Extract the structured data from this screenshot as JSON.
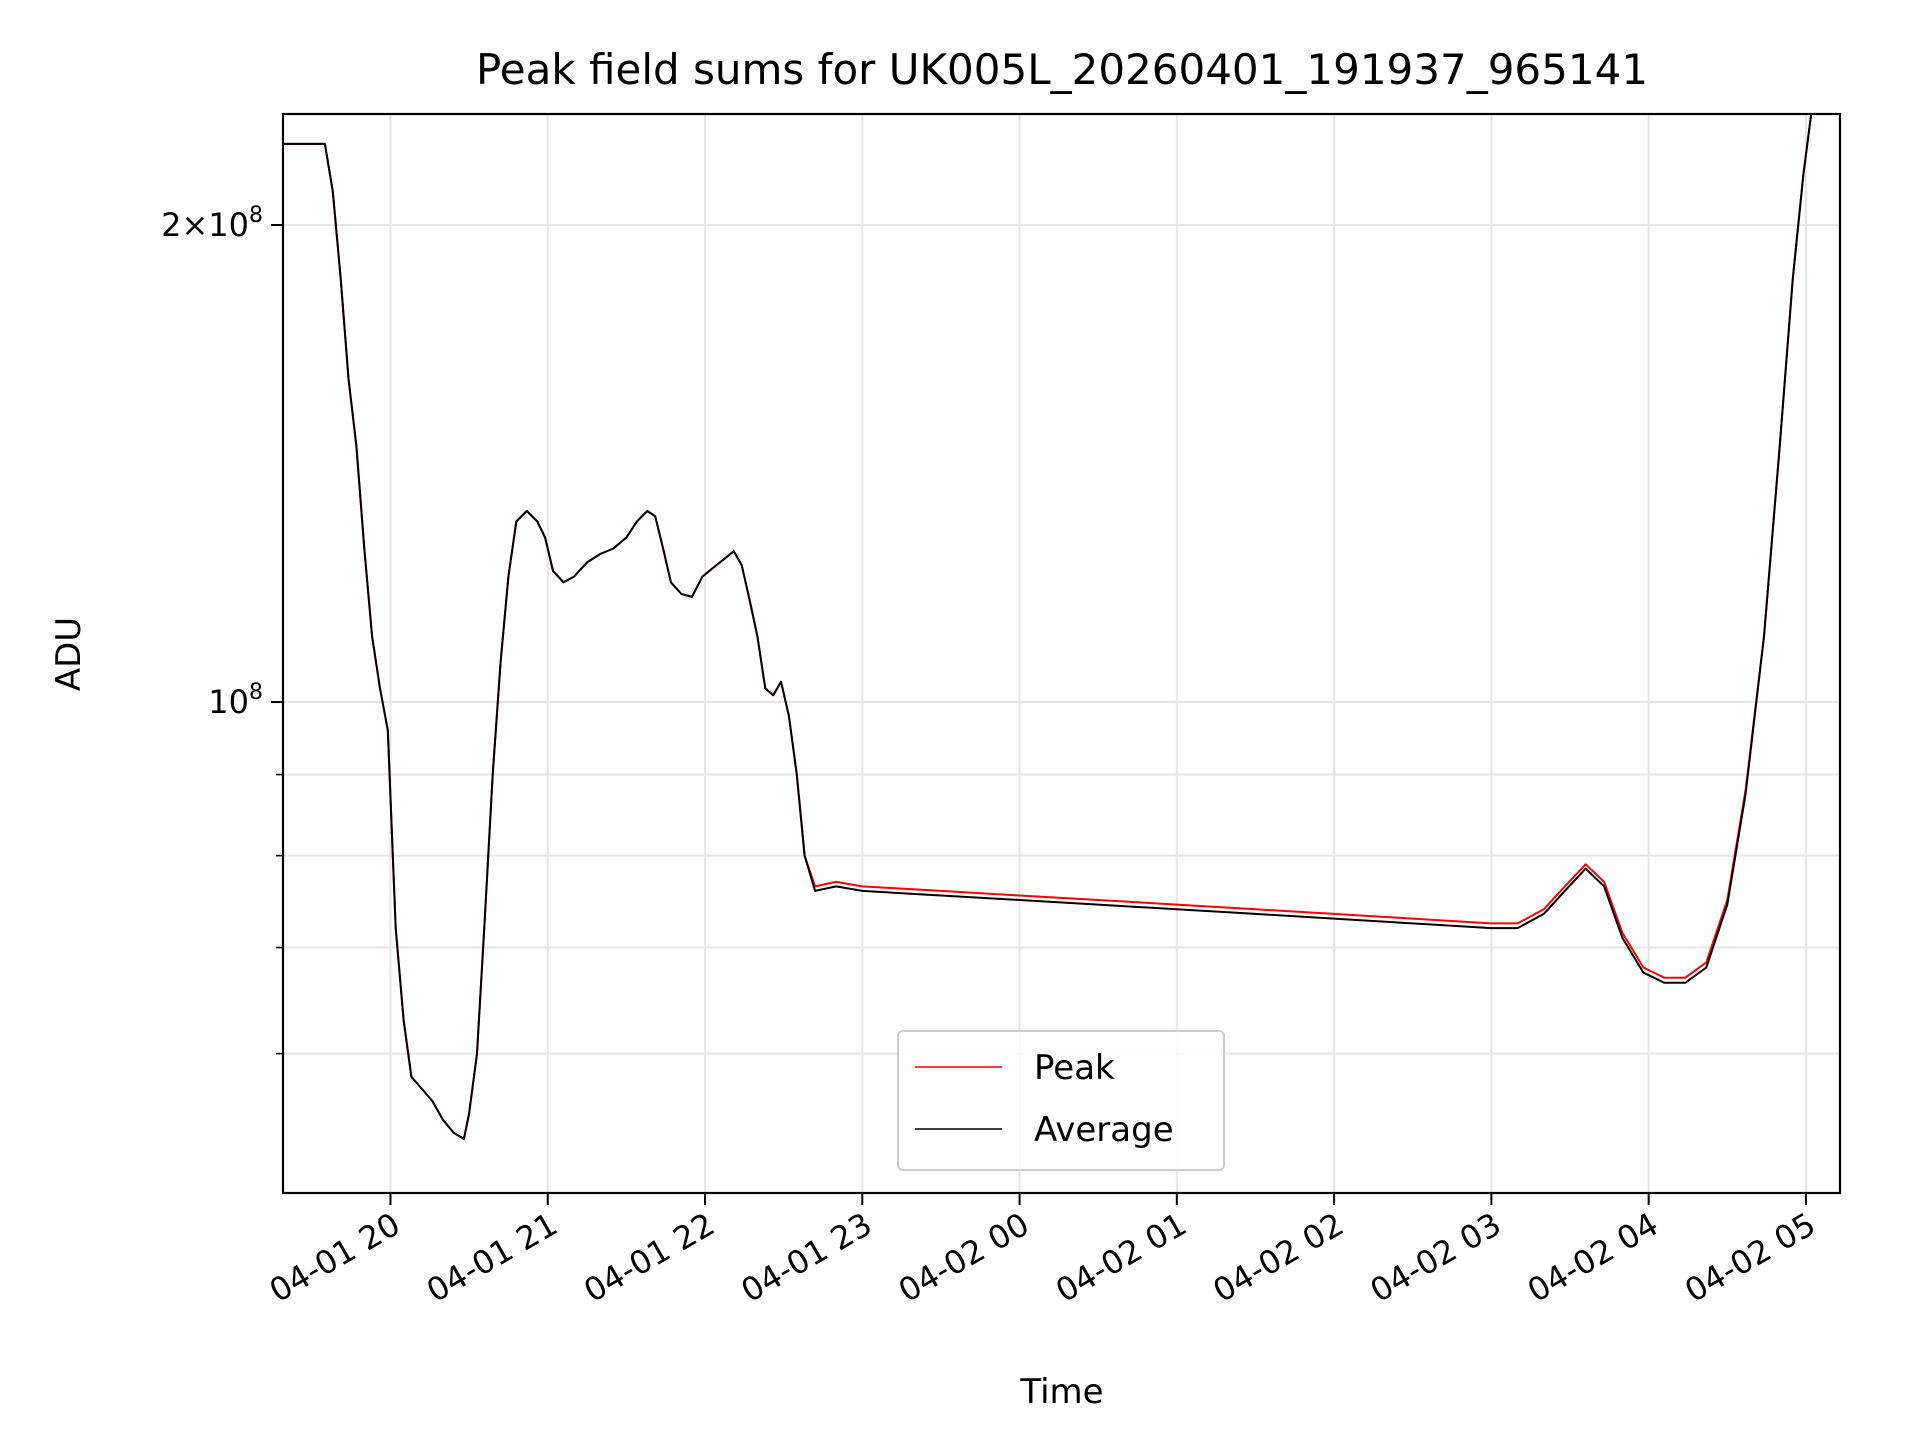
{
  "chart_data": {
    "type": "line",
    "title": "Peak field sums for UK005L_20260401_191937_965141",
    "xlabel": "Time",
    "ylabel": "ADU",
    "y_scale": "log",
    "grid": true,
    "legend_position": "lower-center",
    "x_range": [
      "2026-04-01 19:19",
      "2026-04-02 05:13"
    ],
    "y_range": [
      49000000,
      235000000
    ],
    "x_ticks": [
      {
        "t": "2026-04-01 20:00",
        "label": "04-01 20"
      },
      {
        "t": "2026-04-01 21:00",
        "label": "04-01 21"
      },
      {
        "t": "2026-04-01 22:00",
        "label": "04-01 22"
      },
      {
        "t": "2026-04-01 23:00",
        "label": "04-01 23"
      },
      {
        "t": "2026-04-02 00:00",
        "label": "04-02 00"
      },
      {
        "t": "2026-04-02 01:00",
        "label": "04-02 01"
      },
      {
        "t": "2026-04-02 02:00",
        "label": "04-02 02"
      },
      {
        "t": "2026-04-02 03:00",
        "label": "04-02 03"
      },
      {
        "t": "2026-04-02 04:00",
        "label": "04-02 04"
      },
      {
        "t": "2026-04-02 05:00",
        "label": "04-02 05"
      }
    ],
    "y_ticks": [
      {
        "v": 100000000,
        "base": "10",
        "exp": "8"
      },
      {
        "v": 200000000,
        "base": "2×10",
        "exp": "8"
      }
    ],
    "y_minor_ticks": [
      60000000,
      70000000,
      80000000,
      90000000
    ],
    "series": [
      {
        "name": "Peak",
        "color": "#ff0000",
        "points": [
          [
            "2026-04-01 19:19",
            225000000
          ],
          [
            "2026-04-01 19:35",
            225000000
          ],
          [
            "2026-04-01 19:38",
            210000000
          ],
          [
            "2026-04-01 19:41",
            185000000
          ],
          [
            "2026-04-01 19:44",
            160000000
          ],
          [
            "2026-04-01 19:47",
            145000000
          ],
          [
            "2026-04-01 19:50",
            125000000
          ],
          [
            "2026-04-01 19:53",
            110000000
          ],
          [
            "2026-04-01 19:56",
            102000000
          ],
          [
            "2026-04-01 19:59",
            96000000
          ],
          [
            "2026-04-01 20:02",
            72000000
          ],
          [
            "2026-04-01 20:05",
            63000000
          ],
          [
            "2026-04-01 20:08",
            58000000
          ],
          [
            "2026-04-01 20:12",
            57000000
          ],
          [
            "2026-04-01 20:16",
            56000000
          ],
          [
            "2026-04-01 20:20",
            54500000
          ],
          [
            "2026-04-01 20:24",
            53500000
          ],
          [
            "2026-04-01 20:28",
            53000000
          ],
          [
            "2026-04-01 20:30",
            55000000
          ],
          [
            "2026-04-01 20:33",
            60000000
          ],
          [
            "2026-04-01 20:36",
            73000000
          ],
          [
            "2026-04-01 20:39",
            90000000
          ],
          [
            "2026-04-01 20:42",
            106000000
          ],
          [
            "2026-04-01 20:45",
            120000000
          ],
          [
            "2026-04-01 20:48",
            130000000
          ],
          [
            "2026-04-01 20:52",
            132000000
          ],
          [
            "2026-04-01 20:56",
            130000000
          ],
          [
            "2026-04-01 20:59",
            127000000
          ],
          [
            "2026-04-01 21:02",
            121000000
          ],
          [
            "2026-04-01 21:06",
            119000000
          ],
          [
            "2026-04-01 21:10",
            120000000
          ],
          [
            "2026-04-01 21:15",
            122500000
          ],
          [
            "2026-04-01 21:20",
            124000000
          ],
          [
            "2026-04-01 21:25",
            125000000
          ],
          [
            "2026-04-01 21:30",
            127000000
          ],
          [
            "2026-04-01 21:34",
            130000000
          ],
          [
            "2026-04-01 21:38",
            132000000
          ],
          [
            "2026-04-01 21:41",
            131000000
          ],
          [
            "2026-04-01 21:44",
            125000000
          ],
          [
            "2026-04-01 21:47",
            119000000
          ],
          [
            "2026-04-01 21:51",
            117000000
          ],
          [
            "2026-04-01 21:55",
            116500000
          ],
          [
            "2026-04-01 21:59",
            120000000
          ],
          [
            "2026-04-01 22:03",
            121500000
          ],
          [
            "2026-04-01 22:07",
            123000000
          ],
          [
            "2026-04-01 22:11",
            124500000
          ],
          [
            "2026-04-01 22:14",
            122000000
          ],
          [
            "2026-04-01 22:17",
            116000000
          ],
          [
            "2026-04-01 22:20",
            110000000
          ],
          [
            "2026-04-01 22:23",
            102000000
          ],
          [
            "2026-04-01 22:26",
            101000000
          ],
          [
            "2026-04-01 22:29",
            103000000
          ],
          [
            "2026-04-01 22:32",
            98000000
          ],
          [
            "2026-04-01 22:35",
            90000000
          ],
          [
            "2026-04-01 22:38",
            80000000
          ],
          [
            "2026-04-01 22:42",
            76500000
          ],
          [
            "2026-04-01 22:50",
            77000000
          ],
          [
            "2026-04-01 23:00",
            76500000
          ],
          [
            "2026-04-01 23:30",
            76000000
          ],
          [
            "2026-04-02 00:00",
            75500000
          ],
          [
            "2026-04-02 00:30",
            75000000
          ],
          [
            "2026-04-02 01:00",
            74500000
          ],
          [
            "2026-04-02 01:30",
            74000000
          ],
          [
            "2026-04-02 02:00",
            73500000
          ],
          [
            "2026-04-02 02:30",
            73000000
          ],
          [
            "2026-04-02 03:00",
            72500000
          ],
          [
            "2026-04-02 03:10",
            72500000
          ],
          [
            "2026-04-02 03:20",
            74000000
          ],
          [
            "2026-04-02 03:28",
            76500000
          ],
          [
            "2026-04-02 03:36",
            79000000
          ],
          [
            "2026-04-02 03:43",
            77000000
          ],
          [
            "2026-04-02 03:50",
            71500000
          ],
          [
            "2026-04-02 03:58",
            68000000
          ],
          [
            "2026-04-02 04:06",
            67000000
          ],
          [
            "2026-04-02 04:14",
            67000000
          ],
          [
            "2026-04-02 04:22",
            68500000
          ],
          [
            "2026-04-02 04:30",
            75000000
          ],
          [
            "2026-04-02 04:37",
            88000000
          ],
          [
            "2026-04-02 04:44",
            110000000
          ],
          [
            "2026-04-02 04:50",
            145000000
          ],
          [
            "2026-04-02 04:55",
            185000000
          ],
          [
            "2026-04-02 04:59",
            215000000
          ],
          [
            "2026-04-02 05:02",
            235000000
          ]
        ]
      },
      {
        "name": "Average",
        "color": "#000000",
        "points": [
          [
            "2026-04-01 19:19",
            225000000
          ],
          [
            "2026-04-01 19:35",
            225000000
          ],
          [
            "2026-04-01 19:38",
            210000000
          ],
          [
            "2026-04-01 19:41",
            185000000
          ],
          [
            "2026-04-01 19:44",
            160000000
          ],
          [
            "2026-04-01 19:47",
            145000000
          ],
          [
            "2026-04-01 19:50",
            125000000
          ],
          [
            "2026-04-01 19:53",
            110000000
          ],
          [
            "2026-04-01 19:56",
            102000000
          ],
          [
            "2026-04-01 19:59",
            96000000
          ],
          [
            "2026-04-01 20:02",
            72000000
          ],
          [
            "2026-04-01 20:05",
            63000000
          ],
          [
            "2026-04-01 20:08",
            58000000
          ],
          [
            "2026-04-01 20:12",
            57000000
          ],
          [
            "2026-04-01 20:16",
            56000000
          ],
          [
            "2026-04-01 20:20",
            54500000
          ],
          [
            "2026-04-01 20:24",
            53500000
          ],
          [
            "2026-04-01 20:28",
            53000000
          ],
          [
            "2026-04-01 20:30",
            55000000
          ],
          [
            "2026-04-01 20:33",
            60000000
          ],
          [
            "2026-04-01 20:36",
            73000000
          ],
          [
            "2026-04-01 20:39",
            90000000
          ],
          [
            "2026-04-01 20:42",
            106000000
          ],
          [
            "2026-04-01 20:45",
            120000000
          ],
          [
            "2026-04-01 20:48",
            130000000
          ],
          [
            "2026-04-01 20:52",
            132000000
          ],
          [
            "2026-04-01 20:56",
            130000000
          ],
          [
            "2026-04-01 20:59",
            127000000
          ],
          [
            "2026-04-01 21:02",
            121000000
          ],
          [
            "2026-04-01 21:06",
            119000000
          ],
          [
            "2026-04-01 21:10",
            120000000
          ],
          [
            "2026-04-01 21:15",
            122500000
          ],
          [
            "2026-04-01 21:20",
            124000000
          ],
          [
            "2026-04-01 21:25",
            125000000
          ],
          [
            "2026-04-01 21:30",
            127000000
          ],
          [
            "2026-04-01 21:34",
            130000000
          ],
          [
            "2026-04-01 21:38",
            132000000
          ],
          [
            "2026-04-01 21:41",
            131000000
          ],
          [
            "2026-04-01 21:44",
            125000000
          ],
          [
            "2026-04-01 21:47",
            119000000
          ],
          [
            "2026-04-01 21:51",
            117000000
          ],
          [
            "2026-04-01 21:55",
            116500000
          ],
          [
            "2026-04-01 21:59",
            120000000
          ],
          [
            "2026-04-01 22:03",
            121500000
          ],
          [
            "2026-04-01 22:07",
            123000000
          ],
          [
            "2026-04-01 22:11",
            124500000
          ],
          [
            "2026-04-01 22:14",
            122000000
          ],
          [
            "2026-04-01 22:17",
            116000000
          ],
          [
            "2026-04-01 22:20",
            110000000
          ],
          [
            "2026-04-01 22:23",
            102000000
          ],
          [
            "2026-04-01 22:26",
            101000000
          ],
          [
            "2026-04-01 22:29",
            103000000
          ],
          [
            "2026-04-01 22:32",
            98000000
          ],
          [
            "2026-04-01 22:35",
            90000000
          ],
          [
            "2026-04-01 22:38",
            80000000
          ],
          [
            "2026-04-01 22:42",
            76000000
          ],
          [
            "2026-04-01 22:50",
            76500000
          ],
          [
            "2026-04-01 23:00",
            76000000
          ],
          [
            "2026-04-01 23:30",
            75500000
          ],
          [
            "2026-04-02 00:00",
            75000000
          ],
          [
            "2026-04-02 00:30",
            74500000
          ],
          [
            "2026-04-02 01:00",
            74000000
          ],
          [
            "2026-04-02 01:30",
            73500000
          ],
          [
            "2026-04-02 02:00",
            73000000
          ],
          [
            "2026-04-02 02:30",
            72500000
          ],
          [
            "2026-04-02 03:00",
            72000000
          ],
          [
            "2026-04-02 03:10",
            72000000
          ],
          [
            "2026-04-02 03:20",
            73500000
          ],
          [
            "2026-04-02 03:28",
            76000000
          ],
          [
            "2026-04-02 03:36",
            78500000
          ],
          [
            "2026-04-02 03:43",
            76500000
          ],
          [
            "2026-04-02 03:50",
            71000000
          ],
          [
            "2026-04-02 03:58",
            67500000
          ],
          [
            "2026-04-02 04:06",
            66500000
          ],
          [
            "2026-04-02 04:14",
            66500000
          ],
          [
            "2026-04-02 04:22",
            68000000
          ],
          [
            "2026-04-02 04:30",
            74500000
          ],
          [
            "2026-04-02 04:37",
            87500000
          ],
          [
            "2026-04-02 04:44",
            110000000
          ],
          [
            "2026-04-02 04:50",
            145000000
          ],
          [
            "2026-04-02 04:55",
            185000000
          ],
          [
            "2026-04-02 04:59",
            215000000
          ],
          [
            "2026-04-02 05:02",
            235000000
          ]
        ]
      }
    ]
  }
}
